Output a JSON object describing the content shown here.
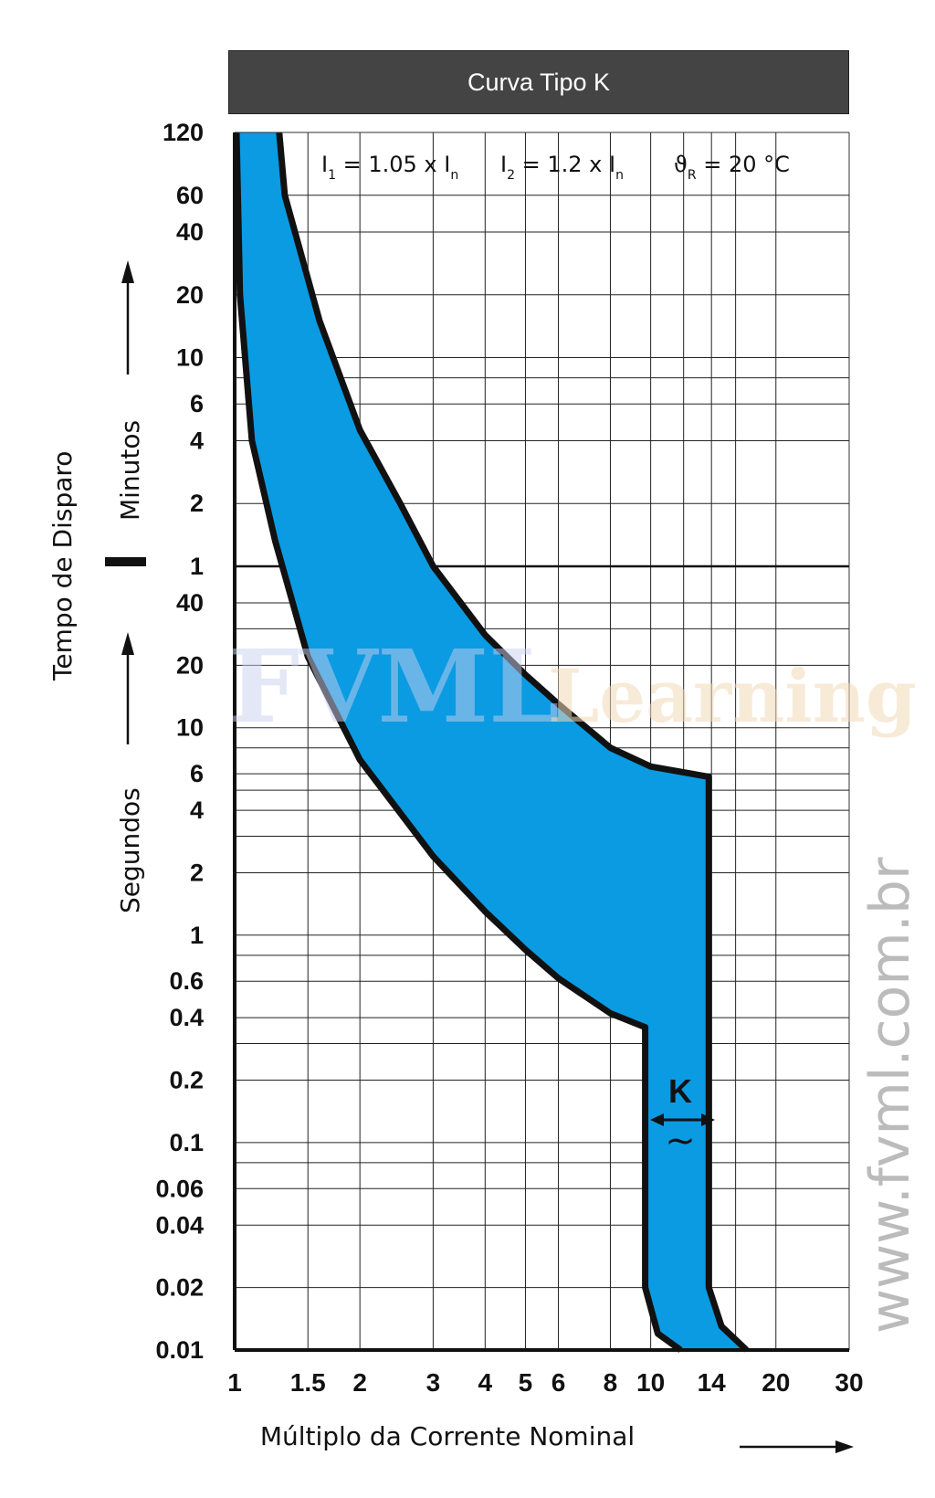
{
  "title": "Curva Tipo K",
  "watermark": {
    "url": "www.fvml.com.br",
    "logo_main": "FVML",
    "logo_sub": "Learning"
  },
  "chart_data": {
    "type": "area",
    "xlabel": "Múltiplo da Corrente Nominal",
    "ylabel": "Tempo de Disparo",
    "y_minutes_label": "Minutos",
    "y_seconds_label": "Segundos",
    "x_scale": "log",
    "xlim": [
      1,
      30
    ],
    "x_ticks": [
      {
        "value": 1,
        "label": "1"
      },
      {
        "value": 1.5,
        "label": "1.5"
      },
      {
        "value": 2,
        "label": "2"
      },
      {
        "value": 3,
        "label": "3"
      },
      {
        "value": 4,
        "label": "4"
      },
      {
        "value": 5,
        "label": "5"
      },
      {
        "value": 6,
        "label": "6"
      },
      {
        "value": 8,
        "label": "8"
      },
      {
        "value": 10,
        "label": "10"
      },
      {
        "value": 14,
        "label": "14"
      },
      {
        "value": 20,
        "label": "20"
      },
      {
        "value": 30,
        "label": "30"
      }
    ],
    "y_ticks_minutes": [
      {
        "value": 120,
        "label": "120"
      },
      {
        "value": 60,
        "label": "60"
      },
      {
        "value": 40,
        "label": "40"
      },
      {
        "value": 20,
        "label": "20"
      },
      {
        "value": 10,
        "label": "10"
      },
      {
        "value": 6,
        "label": "6"
      },
      {
        "value": 4,
        "label": "4"
      },
      {
        "value": 2,
        "label": "2"
      },
      {
        "value": 1,
        "label": "1"
      }
    ],
    "y_ticks_seconds": [
      {
        "value": 40,
        "label": "40"
      },
      {
        "value": 20,
        "label": "20"
      },
      {
        "value": 10,
        "label": "10"
      },
      {
        "value": 6,
        "label": "6"
      },
      {
        "value": 4,
        "label": "4"
      },
      {
        "value": 2,
        "label": "2"
      },
      {
        "value": 1,
        "label": "1"
      },
      {
        "value": 0.6,
        "label": "0.6"
      },
      {
        "value": 0.4,
        "label": "0.4"
      },
      {
        "value": 0.2,
        "label": "0.2"
      },
      {
        "value": 0.1,
        "label": "0.1"
      },
      {
        "value": 0.06,
        "label": "0.06"
      },
      {
        "value": 0.04,
        "label": "0.04"
      },
      {
        "value": 0.02,
        "label": "0.02"
      },
      {
        "value": 0.01,
        "label": "0.01"
      }
    ],
    "conditions": [
      {
        "main": "I",
        "sub": "1",
        "rest": " = 1.05 x I",
        "tail": "n"
      },
      {
        "main": "I",
        "sub": "2",
        "rest": " = 1.2 x I",
        "tail": "n"
      },
      {
        "main": "ϑ",
        "sub": "R",
        "rest": " = 20 °C",
        "tail": ""
      }
    ],
    "band_label": "K",
    "band_symbol": "~",
    "fill_color": "#0b9be3",
    "curve_color": "#111111",
    "lower_boundary": [
      {
        "x": 1.01,
        "t_s": 7200
      },
      {
        "x": 1.03,
        "t_s": 1200
      },
      {
        "x": 1.1,
        "t_s": 240
      },
      {
        "x": 1.25,
        "t_s": 80
      },
      {
        "x": 1.5,
        "t_s": 22
      },
      {
        "x": 2,
        "t_s": 7
      },
      {
        "x": 3,
        "t_s": 2.4
      },
      {
        "x": 4,
        "t_s": 1.3
      },
      {
        "x": 5,
        "t_s": 0.85
      },
      {
        "x": 6,
        "t_s": 0.62
      },
      {
        "x": 8,
        "t_s": 0.42
      },
      {
        "x": 9.7,
        "t_s": 0.36
      },
      {
        "x": 9.7,
        "t_s": 0.02
      },
      {
        "x": 10.4,
        "t_s": 0.012
      },
      {
        "x": 11.8,
        "t_s": 0.01
      }
    ],
    "upper_boundary": [
      {
        "x": 1.28,
        "t_s": 7200
      },
      {
        "x": 1.32,
        "t_s": 3600
      },
      {
        "x": 1.6,
        "t_s": 900
      },
      {
        "x": 2,
        "t_s": 270
      },
      {
        "x": 2.5,
        "t_s": 120
      },
      {
        "x": 3,
        "t_s": 60
      },
      {
        "x": 4,
        "t_s": 28
      },
      {
        "x": 5,
        "t_s": 18
      },
      {
        "x": 6,
        "t_s": 13
      },
      {
        "x": 8,
        "t_s": 8
      },
      {
        "x": 10,
        "t_s": 6.5
      },
      {
        "x": 13.8,
        "t_s": 5.8
      },
      {
        "x": 13.8,
        "t_s": 0.02
      },
      {
        "x": 14.8,
        "t_s": 0.013
      },
      {
        "x": 17,
        "t_s": 0.01
      }
    ]
  }
}
